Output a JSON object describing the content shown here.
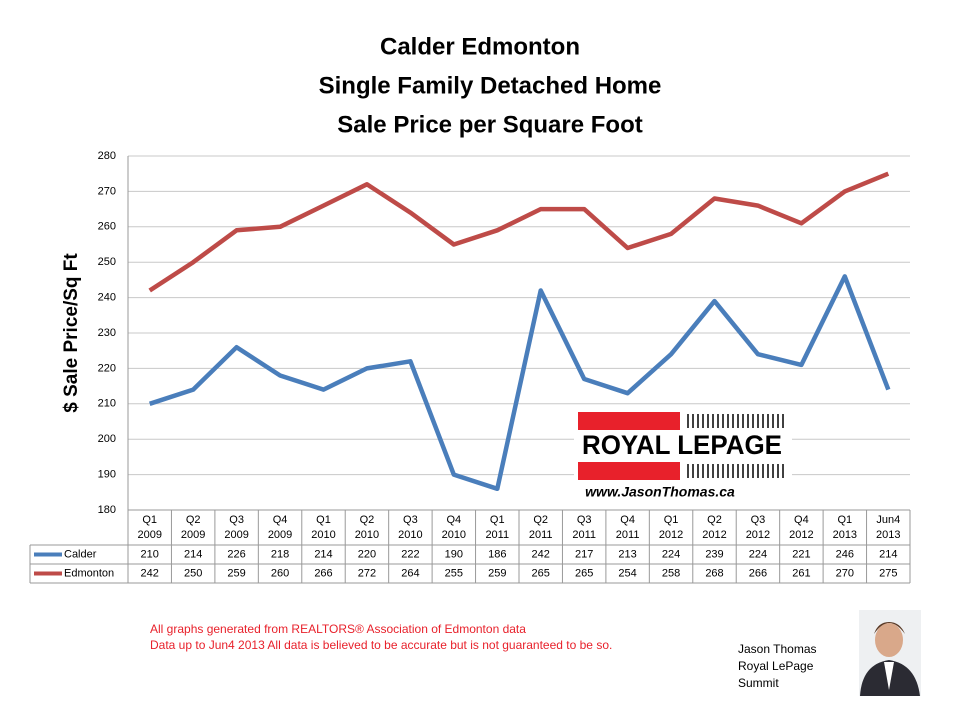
{
  "chart_data": {
    "type": "line",
    "title": [
      "Calder Edmonton",
      "Single Family Detached Home",
      "Sale Price per Square Foot"
    ],
    "y_label": "$ Sale Price/Sq Ft",
    "categories": [
      [
        "Q1",
        "2009"
      ],
      [
        "Q2",
        "2009"
      ],
      [
        "Q3",
        "2009"
      ],
      [
        "Q4",
        "2009"
      ],
      [
        "Q1",
        "2010"
      ],
      [
        "Q2",
        "2010"
      ],
      [
        "Q3",
        "2010"
      ],
      [
        "Q4",
        "2010"
      ],
      [
        "Q1",
        "2011"
      ],
      [
        "Q2",
        "2011"
      ],
      [
        "Q3",
        "2011"
      ],
      [
        "Q4",
        "2011"
      ],
      [
        "Q1",
        "2012"
      ],
      [
        "Q2",
        "2012"
      ],
      [
        "Q3",
        "2012"
      ],
      [
        "Q4",
        "2012"
      ],
      [
        "Q1",
        "2013"
      ],
      [
        "Jun4",
        "2013"
      ]
    ],
    "series": [
      {
        "name": "Calder",
        "color": "#4a7ebb",
        "values": [
          210,
          214,
          226,
          218,
          214,
          220,
          222,
          190,
          186,
          242,
          217,
          213,
          224,
          239,
          224,
          221,
          246,
          214
        ]
      },
      {
        "name": "Edmonton",
        "color": "#be4b48",
        "values": [
          242,
          250,
          259,
          260,
          266,
          272,
          264,
          255,
          259,
          265,
          265,
          254,
          258,
          268,
          266,
          261,
          270,
          275
        ]
      }
    ],
    "ylim": [
      180,
      280
    ],
    "yticks": [
      180,
      190,
      200,
      210,
      220,
      230,
      240,
      250,
      260,
      270,
      280
    ],
    "grid": true,
    "logo": {
      "brand": "ROYAL LEPAGE",
      "url": "www.JasonThomas.ca"
    },
    "notes": [
      "All graphs generated from REALTORS® Association of Edmonton data",
      "Data up to  Jun4 2013  All data is believed to be accurate but is not guaranteed to be so."
    ],
    "agent": [
      "Jason Thomas",
      "Royal LePage",
      "Summit"
    ]
  }
}
